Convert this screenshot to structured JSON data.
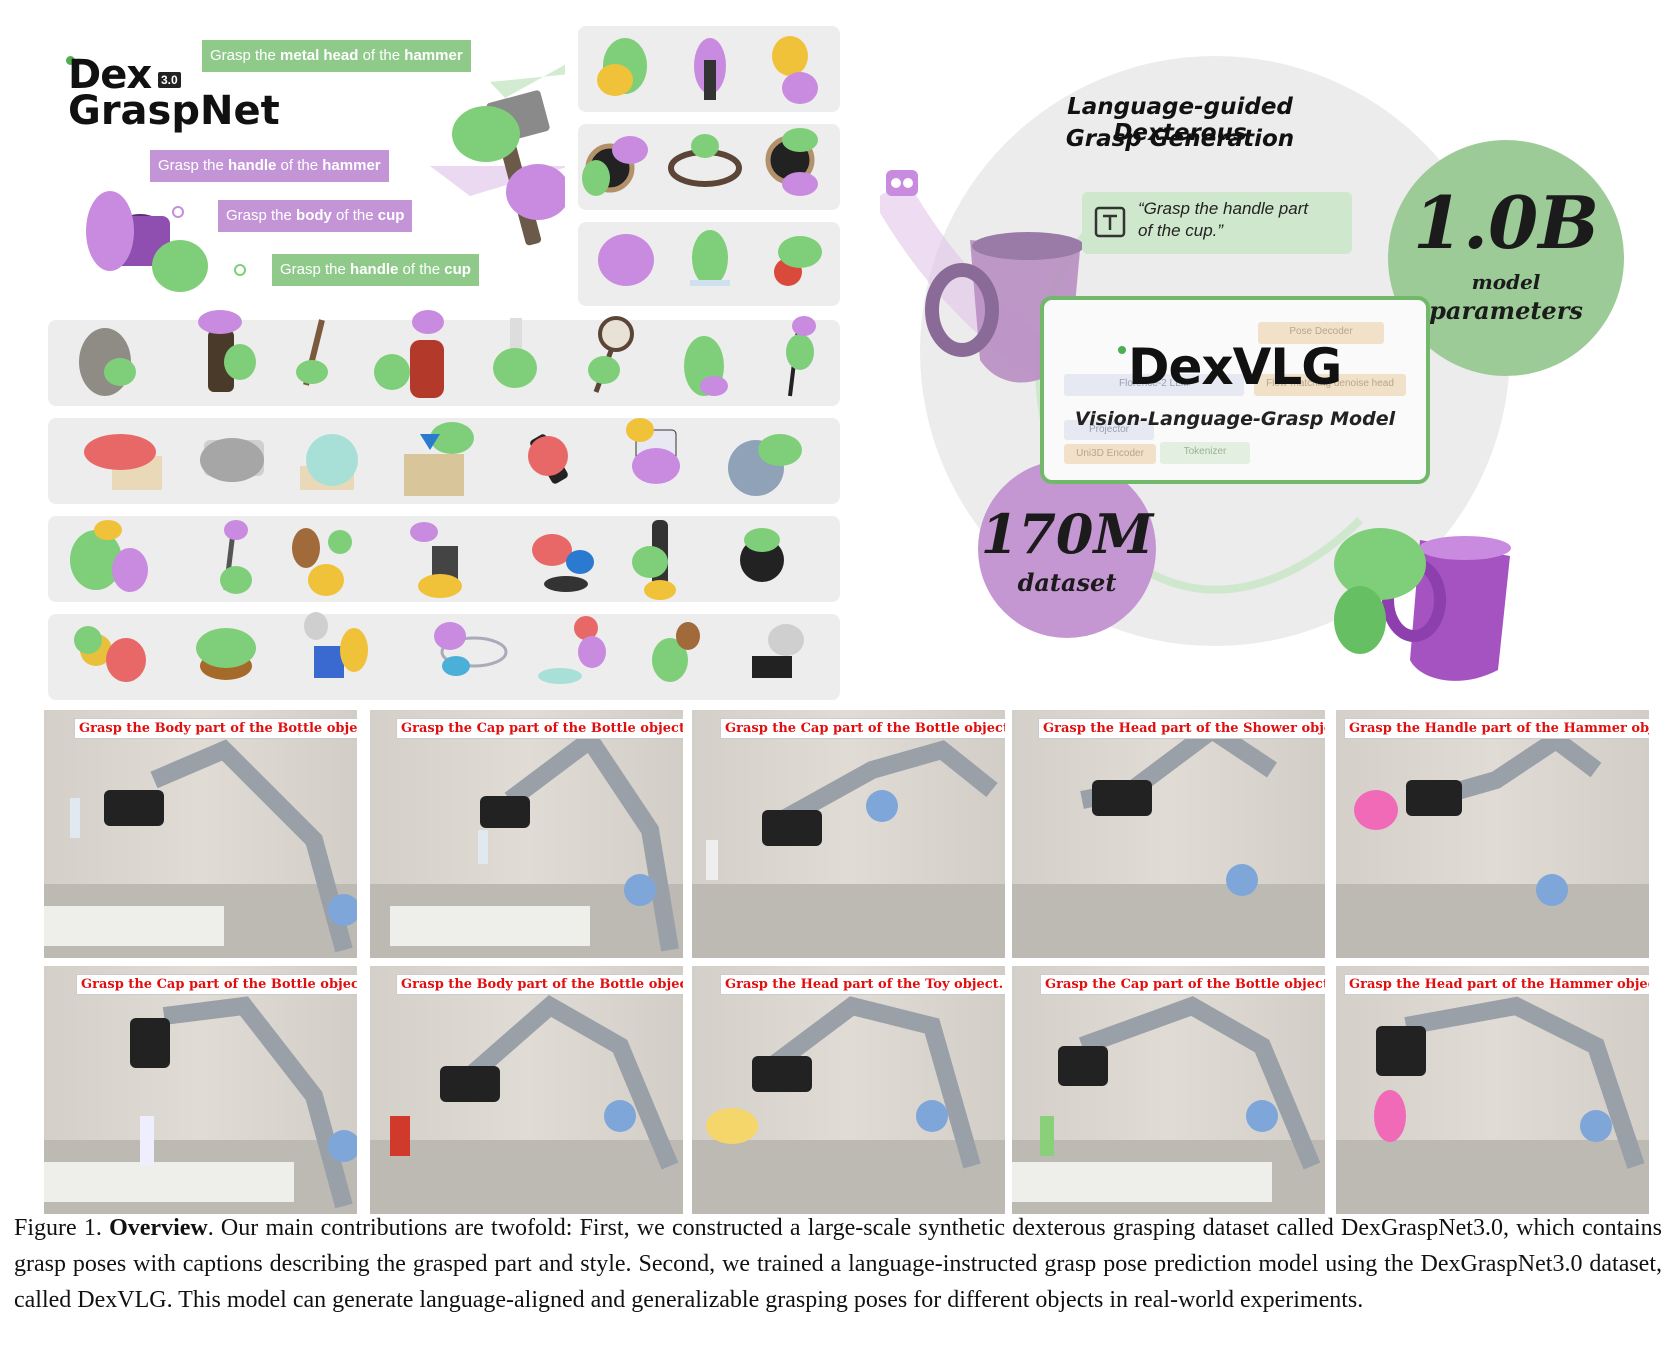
{
  "hero": {
    "logo_dex": "Dex",
    "logo_version": "3.0",
    "logo_name": "GraspNet",
    "tags": [
      {
        "pre": "Grasp the ",
        "part": "metal head",
        "mid": " of the ",
        "obj": "hammer"
      },
      {
        "pre": "Grasp the ",
        "part": "handle",
        "mid": " of the ",
        "obj": "hammer"
      },
      {
        "pre": "Grasp the ",
        "part": "body",
        "mid": " of the ",
        "obj": "cup"
      },
      {
        "pre": "Grasp the ",
        "part": "handle",
        "mid": " of the ",
        "obj": "cup"
      }
    ]
  },
  "diagram": {
    "title_line1": "Language-guided Dexterous",
    "title_line2": "Grasp Generation",
    "params_value": "1.0B",
    "params_label1": "model",
    "params_label2": "parameters",
    "dataset_value": "170M",
    "dataset_label": "dataset",
    "quote_line1": "“Grasp the handle part",
    "quote_line2": "of the cup.”",
    "model_logo": "DexVLG",
    "model_subtitle": "Vision-Language-Grasp Model",
    "ghost_labels": {
      "pose_decoder": "Pose Decoder",
      "florence": "Florence-2 LLM",
      "flow": "Flow-matching denoise head",
      "uni3d": "Uni3D Encoder",
      "tokenizer": "Tokenizer",
      "projector": "Projector"
    }
  },
  "photos": [
    {
      "caption": "Grasp the Body part of the Bottle object."
    },
    {
      "caption": "Grasp the Cap part of the Bottle object."
    },
    {
      "caption": "Grasp the Cap part of the Bottle object."
    },
    {
      "caption": "Grasp the Head part of the Shower object."
    },
    {
      "caption": "Grasp the Handle part of the Hammer object."
    },
    {
      "caption": "Grasp the Cap part of the Bottle object."
    },
    {
      "caption": "Grasp the Body part of the Bottle object."
    },
    {
      "caption": "Grasp the Head part of the Toy object."
    },
    {
      "caption": "Grasp the Cap part of the Bottle object."
    },
    {
      "caption": "Grasp the Head part of the Hammer object."
    }
  ],
  "figure_caption": {
    "label": "Figure 1.",
    "bold_title": "Overview",
    "text": ". Our main contributions are twofold: First, we constructed a large-scale synthetic dexterous grasping dataset called DexGraspNet3.0, which contains grasp poses with captions describing the grasped part and style. Second, we trained a language-instructed grasp pose prediction model using the DexGraspNet3.0 dataset, called DexVLG. This model can generate language-aligned and generalizable grasping poses for different objects in real-world experiments."
  },
  "colors": {
    "hand_green": "#7fcf7a",
    "hand_purple": "#c98be0",
    "tag_green": "#8fca8b",
    "tag_purple": "#c495d6",
    "caption_red": "#e01010"
  }
}
